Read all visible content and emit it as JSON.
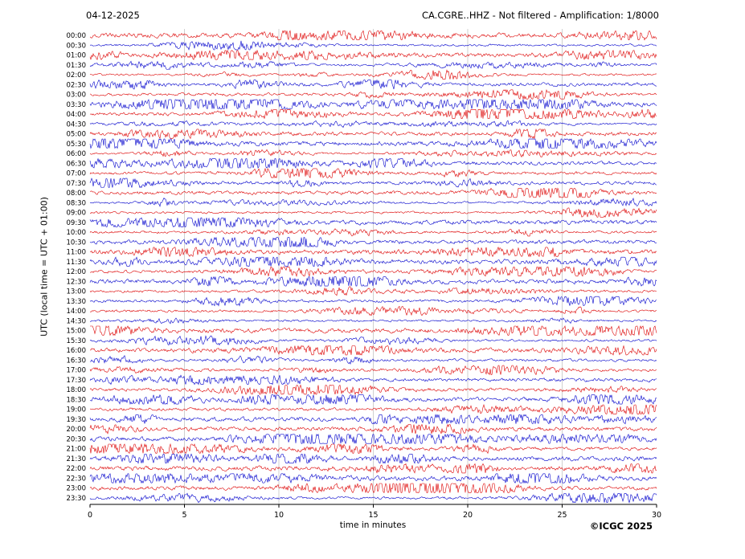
{
  "header": {
    "date": "04-12-2025",
    "channel_title": "CA.CGRE..HHZ - Not filtered - Amplification: 1/8000"
  },
  "chart_data": {
    "type": "line",
    "subtype": "helicorder-daily-seismogram",
    "title": "CA.CGRE..HHZ - Not filtered - Amplification: 1/8000",
    "date": "04-12-2025",
    "station": "CA.CGRE..HHZ",
    "filter": "Not filtered",
    "amplification": "1/8000",
    "xlabel": "time in minutes",
    "ylabel": "UTC (local time = UTC + 01:00)",
    "xlim": [
      0,
      30
    ],
    "x_ticks": [
      0,
      5,
      10,
      15,
      20,
      25,
      30
    ],
    "minutes_per_row": 30,
    "rows_count": 48,
    "row_labels": [
      "00:00",
      "00:30",
      "01:00",
      "01:30",
      "02:00",
      "02:30",
      "03:00",
      "03:30",
      "04:00",
      "04:30",
      "05:00",
      "05:30",
      "06:00",
      "06:30",
      "07:00",
      "07:30",
      "08:00",
      "08:30",
      "09:00",
      "09:30",
      "10:00",
      "10:30",
      "11:00",
      "11:30",
      "12:00",
      "12:30",
      "13:00",
      "13:30",
      "14:00",
      "14:30",
      "15:00",
      "15:30",
      "16:00",
      "16:30",
      "17:00",
      "17:30",
      "18:00",
      "18:30",
      "19:00",
      "19:30",
      "20:00",
      "20:30",
      "21:00",
      "21:30",
      "22:00",
      "22:30",
      "23:00",
      "23:30"
    ],
    "trace_colors": [
      "#dd0000",
      "#0000cc"
    ],
    "color_pattern": "alternating red/blue per 30-minute row",
    "grid": {
      "vertical_gridlines_minutes": [
        5,
        10,
        15,
        20,
        25
      ],
      "color": "#c4c4c4"
    },
    "annotations": [
      {
        "row_label": "08:00",
        "description": "small seismic event burst with decaying coda",
        "start_minute": 21.8,
        "end_minute": 25.0
      }
    ],
    "background_signal": "continuous microseismic noise on all rows with intermittent small amplitude bursts"
  },
  "footer": {
    "copyright": "©ICGC 2025"
  }
}
